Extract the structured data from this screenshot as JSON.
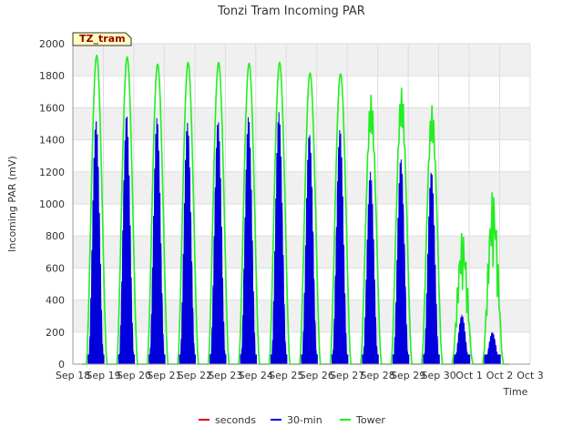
{
  "chart_data": {
    "type": "line",
    "title": "Tonzi Tram Incoming PAR",
    "site_label": "TZ_tram",
    "xlabel": "Time",
    "ylabel": "Incoming PAR (mV)",
    "xlim": [
      0,
      15
    ],
    "ylim": [
      0,
      2000
    ],
    "x_ticks": [
      {
        "x": 0,
        "label": "Sep 18"
      },
      {
        "x": 1,
        "label": "Sep 19"
      },
      {
        "x": 2,
        "label": "Sep 20"
      },
      {
        "x": 3,
        "label": "Sep 21"
      },
      {
        "x": 4,
        "label": "Sep 22"
      },
      {
        "x": 5,
        "label": "Sep 23"
      },
      {
        "x": 6,
        "label": "Sep 24"
      },
      {
        "x": 7,
        "label": "Sep 25"
      },
      {
        "x": 8,
        "label": "Sep 26"
      },
      {
        "x": 9,
        "label": "Sep 27"
      },
      {
        "x": 10,
        "label": "Sep 28"
      },
      {
        "x": 11,
        "label": "Sep 29"
      },
      {
        "x": 12,
        "label": "Sep 30"
      },
      {
        "x": 13,
        "label": "Oct 1"
      },
      {
        "x": 14,
        "label": "Oct 2"
      },
      {
        "x": 15,
        "label": "Oct 3"
      }
    ],
    "y_ticks": [
      0,
      200,
      400,
      600,
      800,
      1000,
      1200,
      1400,
      1600,
      1800,
      2000
    ],
    "grid": true,
    "banding": true,
    "legend_position": "bottom-center",
    "series": [
      {
        "name": "seconds",
        "color": "#dd0000",
        "peaks": []
      },
      {
        "name": "30-min",
        "color": "#0000dd",
        "peaks": [
          1580,
          1570,
          1540,
          1540,
          1560,
          1550,
          1580,
          1490,
          1490,
          1200,
          1300,
          1250,
          310,
          200
        ]
      },
      {
        "name": "Tower",
        "color": "#22ee22",
        "peaks": [
          1930,
          1920,
          1875,
          1885,
          1885,
          1880,
          1885,
          1820,
          1815,
          1680,
          1725,
          1615,
          835,
          1095
        ]
      }
    ]
  }
}
